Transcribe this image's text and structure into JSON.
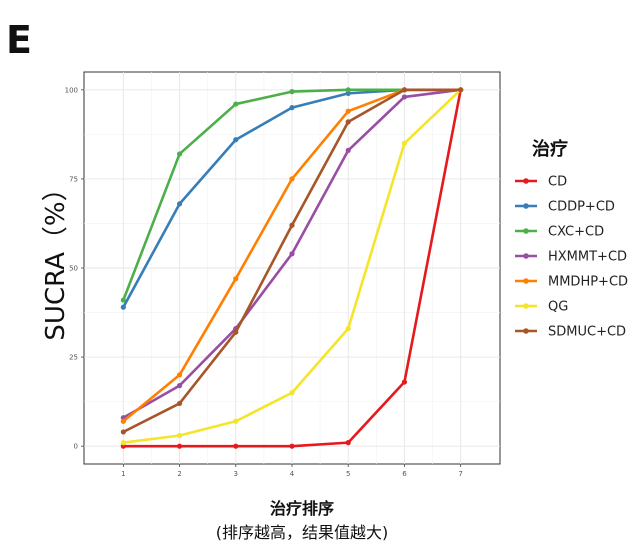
{
  "panel_label": "E",
  "chart_data": {
    "type": "line",
    "title": "",
    "xlabel": "治疗排序",
    "xlabel_sub": "(排序越高，结果值越大)",
    "ylabel": "SUCRA（%）",
    "x": [
      1,
      2,
      3,
      4,
      5,
      6,
      7
    ],
    "x_ticks": [
      "1",
      "2",
      "3",
      "4",
      "5",
      "6",
      "7"
    ],
    "y_ticks": [
      "0",
      "25",
      "50",
      "75",
      "100"
    ],
    "ylim": [
      0,
      100
    ],
    "grid": true,
    "legend_title": "治疗",
    "legend_position": "right",
    "series": [
      {
        "name": "CD",
        "color": "#e41a1c",
        "values": [
          0,
          0,
          0,
          0,
          1,
          18,
          100
        ]
      },
      {
        "name": "CDDP+CD",
        "color": "#377eb8",
        "values": [
          39,
          68,
          86,
          95,
          99,
          100,
          100
        ]
      },
      {
        "name": "CXC+CD",
        "color": "#4daf4a",
        "values": [
          41,
          82,
          96,
          99.5,
          100,
          100,
          100
        ]
      },
      {
        "name": "HXMMT+CD",
        "color": "#984ea3",
        "values": [
          8,
          17,
          33,
          54,
          83,
          98,
          100
        ]
      },
      {
        "name": "MMDHP+CD",
        "color": "#ff7f00",
        "values": [
          7,
          20,
          47,
          75,
          94,
          100,
          100
        ]
      },
      {
        "name": "QG",
        "color": "#f5e52a",
        "values": [
          1,
          3,
          7,
          15,
          33,
          85,
          100
        ]
      },
      {
        "name": "SDMUC+CD",
        "color": "#a65628",
        "values": [
          4,
          12,
          32,
          62,
          91,
          100,
          100
        ]
      }
    ]
  }
}
